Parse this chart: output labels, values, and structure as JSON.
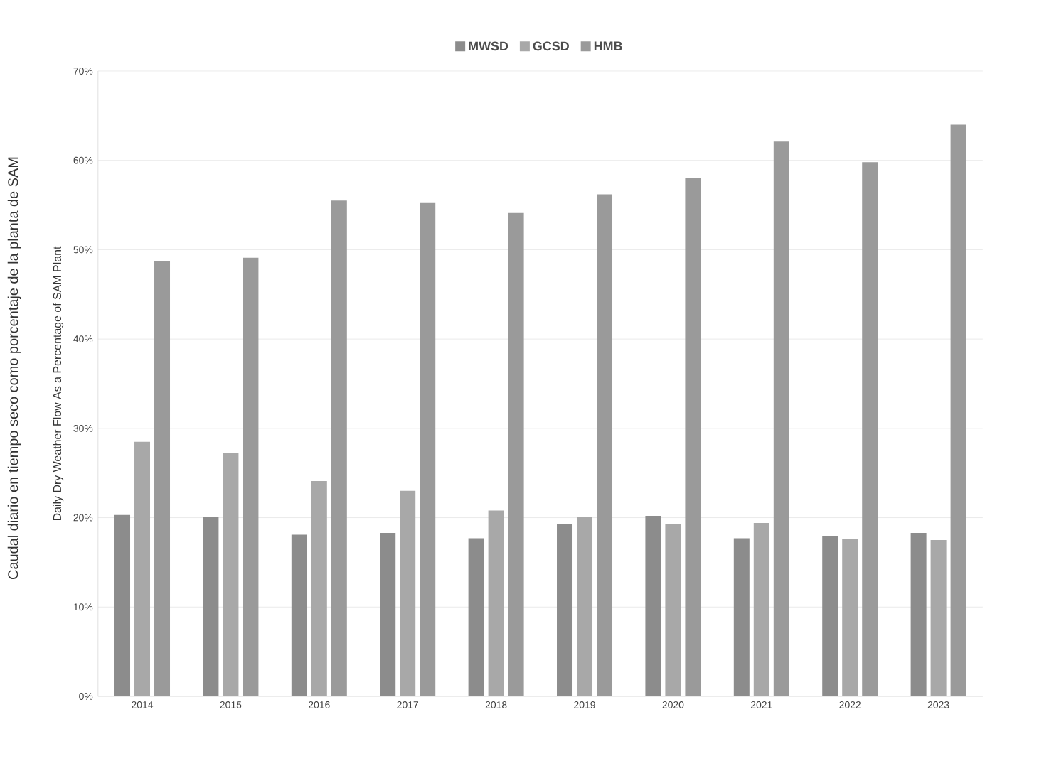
{
  "chart_data": {
    "type": "bar",
    "ylabel": "Daily Dry Weather Flow As a Percentage of SAM Plant",
    "annotations": [
      "Caudal diario en tiempo seco como porcentaje de la planta de SAM"
    ],
    "categories": [
      "2014",
      "2015",
      "2016",
      "2017",
      "2018",
      "2019",
      "2020",
      "2021",
      "2022",
      "2023"
    ],
    "series": [
      {
        "name": "MWSD",
        "color": "#8c8c8c",
        "values": [
          20.3,
          20.1,
          18.1,
          18.3,
          17.7,
          19.3,
          20.2,
          17.7,
          17.9,
          18.3
        ]
      },
      {
        "name": "GCSD",
        "color": "#a8a8a8",
        "values": [
          28.5,
          27.2,
          24.1,
          23.0,
          20.8,
          20.1,
          19.3,
          19.4,
          17.6,
          17.5
        ]
      },
      {
        "name": "HMB",
        "color": "#9a9a9a",
        "values": [
          48.7,
          49.1,
          55.5,
          55.3,
          54.1,
          56.2,
          58.0,
          62.1,
          59.8,
          64.0
        ]
      }
    ],
    "ylim": [
      0,
      70
    ],
    "yticks": [
      {
        "value": 0,
        "label": "0%"
      },
      {
        "value": 10,
        "label": "10%"
      },
      {
        "value": 20,
        "label": "20%"
      },
      {
        "value": 30,
        "label": "30%"
      },
      {
        "value": 40,
        "label": "40%"
      },
      {
        "value": 50,
        "label": "50%"
      },
      {
        "value": 60,
        "label": "60%"
      },
      {
        "value": 70,
        "label": "70%"
      }
    ],
    "grid": "y",
    "legend": "top"
  }
}
